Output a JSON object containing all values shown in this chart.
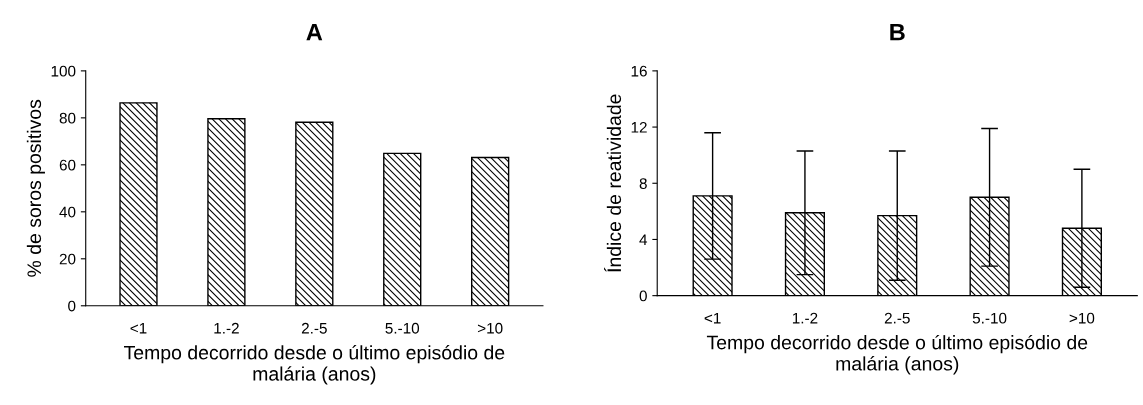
{
  "chart_data": [
    {
      "type": "bar",
      "title": "A",
      "xlabel": "Tempo decorrido desde o último episódio de\nmalária (anos)",
      "ylabel": "% de soros positivos",
      "categories": [
        "<1",
        "1.-2",
        "2.-5",
        "5.-10",
        ">10"
      ],
      "values": [
        86.4,
        79.6,
        78.1,
        64.9,
        63.1
      ],
      "color": "#000000",
      "ylim": [
        0,
        100
      ],
      "yticks": [
        0,
        20,
        40,
        60,
        80,
        100
      ],
      "grid": false
    },
    {
      "type": "bar",
      "title": "B",
      "xlabel": "Tempo decorrido desde o último episódio de\nmalária (anos)",
      "ylabel": "Índice de reatividade",
      "categories": [
        "<1",
        "1.-2",
        "2.-5",
        "5.-10",
        ">10"
      ],
      "values": [
        7.1,
        5.9,
        5.7,
        7.0,
        4.8
      ],
      "errors": [
        4.5,
        4.4,
        4.6,
        4.9,
        4.2
      ],
      "color": "#000000",
      "ylim": [
        0,
        16
      ],
      "yticks": [
        0,
        4,
        8,
        12,
        16
      ],
      "grid": false
    }
  ]
}
